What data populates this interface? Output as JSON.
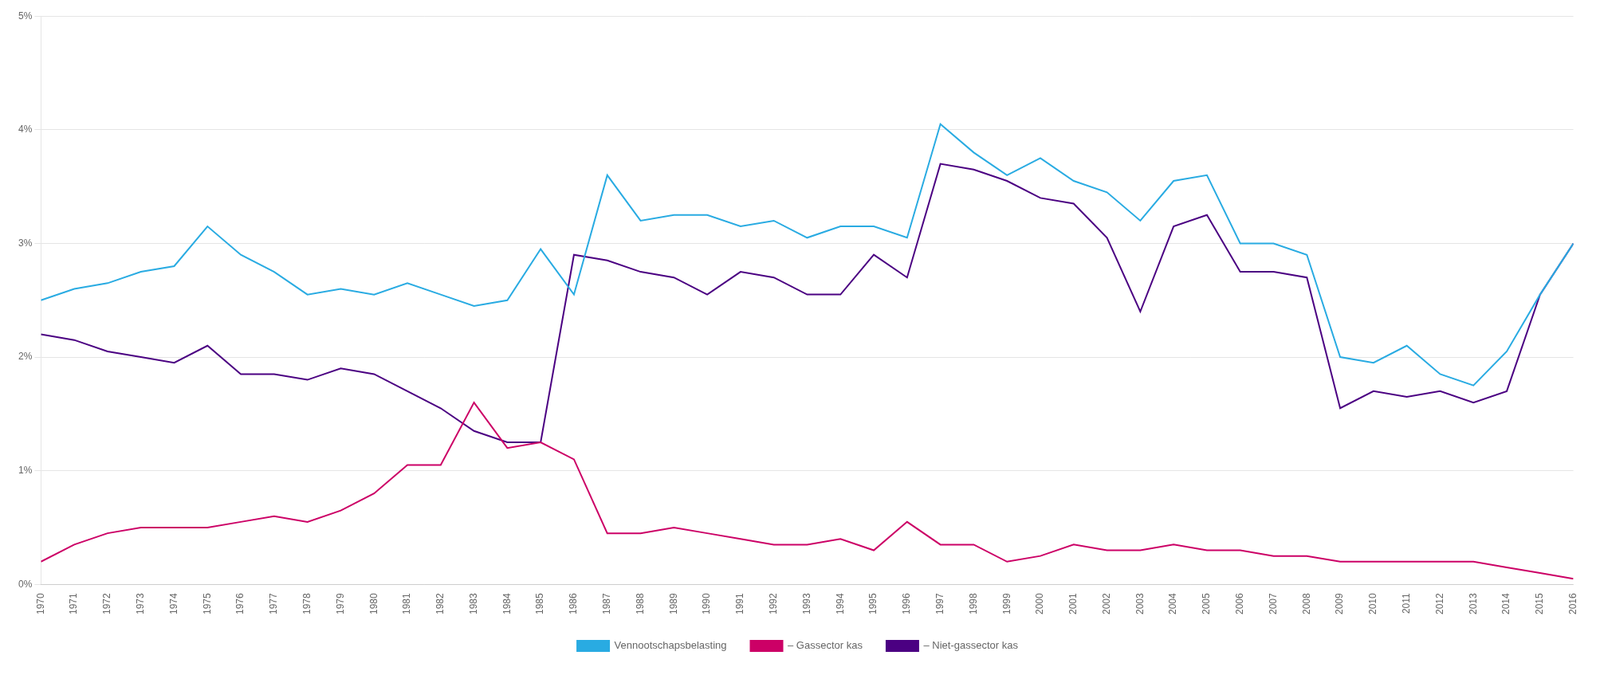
{
  "chart_data": {
    "type": "line",
    "x": [
      1970,
      1971,
      1972,
      1973,
      1974,
      1975,
      1976,
      1977,
      1978,
      1979,
      1980,
      1981,
      1982,
      1983,
      1984,
      1985,
      1986,
      1987,
      1988,
      1989,
      1990,
      1991,
      1992,
      1993,
      1994,
      1995,
      1996,
      1997,
      1998,
      1999,
      2000,
      2001,
      2002,
      2003,
      2004,
      2005,
      2006,
      2007,
      2008,
      2009,
      2010,
      2011,
      2012,
      2013,
      2014,
      2015,
      2016
    ],
    "series": [
      {
        "name": "Vennootschapsbelasting",
        "color": "#29ABE2",
        "line_style": "solid",
        "values": [
          2.5,
          2.6,
          2.65,
          2.75,
          2.8,
          3.15,
          2.9,
          2.75,
          2.55,
          2.6,
          2.55,
          2.65,
          2.55,
          2.45,
          2.5,
          2.95,
          2.55,
          3.6,
          3.2,
          3.25,
          3.25,
          3.15,
          3.2,
          3.05,
          3.15,
          3.15,
          3.05,
          4.05,
          3.8,
          3.6,
          3.75,
          3.55,
          3.45,
          3.2,
          3.55,
          3.6,
          3.0,
          3.0,
          2.9,
          2.0,
          1.95,
          2.1,
          1.85,
          1.75,
          2.05,
          2.55,
          3.0
        ]
      },
      {
        "name": "– Gassector kas",
        "color": "#CC0066",
        "line_style": "solid",
        "values": [
          0.2,
          0.35,
          0.45,
          0.5,
          0.5,
          0.5,
          0.55,
          0.6,
          0.55,
          0.65,
          0.8,
          1.05,
          1.05,
          1.6,
          1.2,
          1.25,
          1.1,
          0.45,
          0.45,
          0.5,
          0.45,
          0.4,
          0.35,
          0.35,
          0.4,
          0.3,
          0.55,
          0.35,
          0.35,
          0.2,
          0.25,
          0.35,
          0.3,
          0.3,
          0.35,
          0.3,
          0.3,
          0.25,
          0.25,
          0.2,
          0.2,
          0.2,
          0.2,
          0.2,
          0.15,
          0.1,
          0.05
        ]
      },
      {
        "name": "– Niet-gassector kas",
        "color": "#4B0082",
        "line_style": "solid",
        "values": [
          2.2,
          2.15,
          2.05,
          2.0,
          1.95,
          2.1,
          1.85,
          1.85,
          1.8,
          1.9,
          1.85,
          1.7,
          1.55,
          1.35,
          1.25,
          1.25,
          2.9,
          2.85,
          2.75,
          2.7,
          2.55,
          2.75,
          2.7,
          2.55,
          2.55,
          2.9,
          2.7,
          3.7,
          3.65,
          3.55,
          3.4,
          3.35,
          3.05,
          2.4,
          3.15,
          3.25,
          2.75,
          2.75,
          2.7,
          1.55,
          1.7,
          1.65,
          1.7,
          1.6,
          1.7,
          2.55,
          3.0
        ]
      }
    ],
    "xlim": [
      1970,
      2016
    ],
    "xticks": [
      1970,
      1971,
      1972,
      1973,
      1974,
      1975,
      1976,
      1977,
      1978,
      1979,
      1980,
      1981,
      1982,
      1983,
      1984,
      1985,
      1986,
      1987,
      1988,
      1989,
      1990,
      1991,
      1992,
      1993,
      1994,
      1995,
      1996,
      1997,
      1998,
      1999,
      2000,
      2001,
      2002,
      2003,
      2004,
      2005,
      2006,
      2007,
      2008,
      2009,
      2010,
      2011,
      2012,
      2013,
      2014,
      2015,
      2016
    ],
    "ylim": [
      0,
      5
    ],
    "yticks": [
      {
        "value": 0,
        "label": "0%"
      },
      {
        "value": 1,
        "label": "1%"
      },
      {
        "value": 2,
        "label": "2%"
      },
      {
        "value": 3,
        "label": "3%"
      },
      {
        "value": 4,
        "label": "4%"
      },
      {
        "value": 5,
        "label": "5%"
      }
    ],
    "grid": "y",
    "legend": "bottom"
  }
}
